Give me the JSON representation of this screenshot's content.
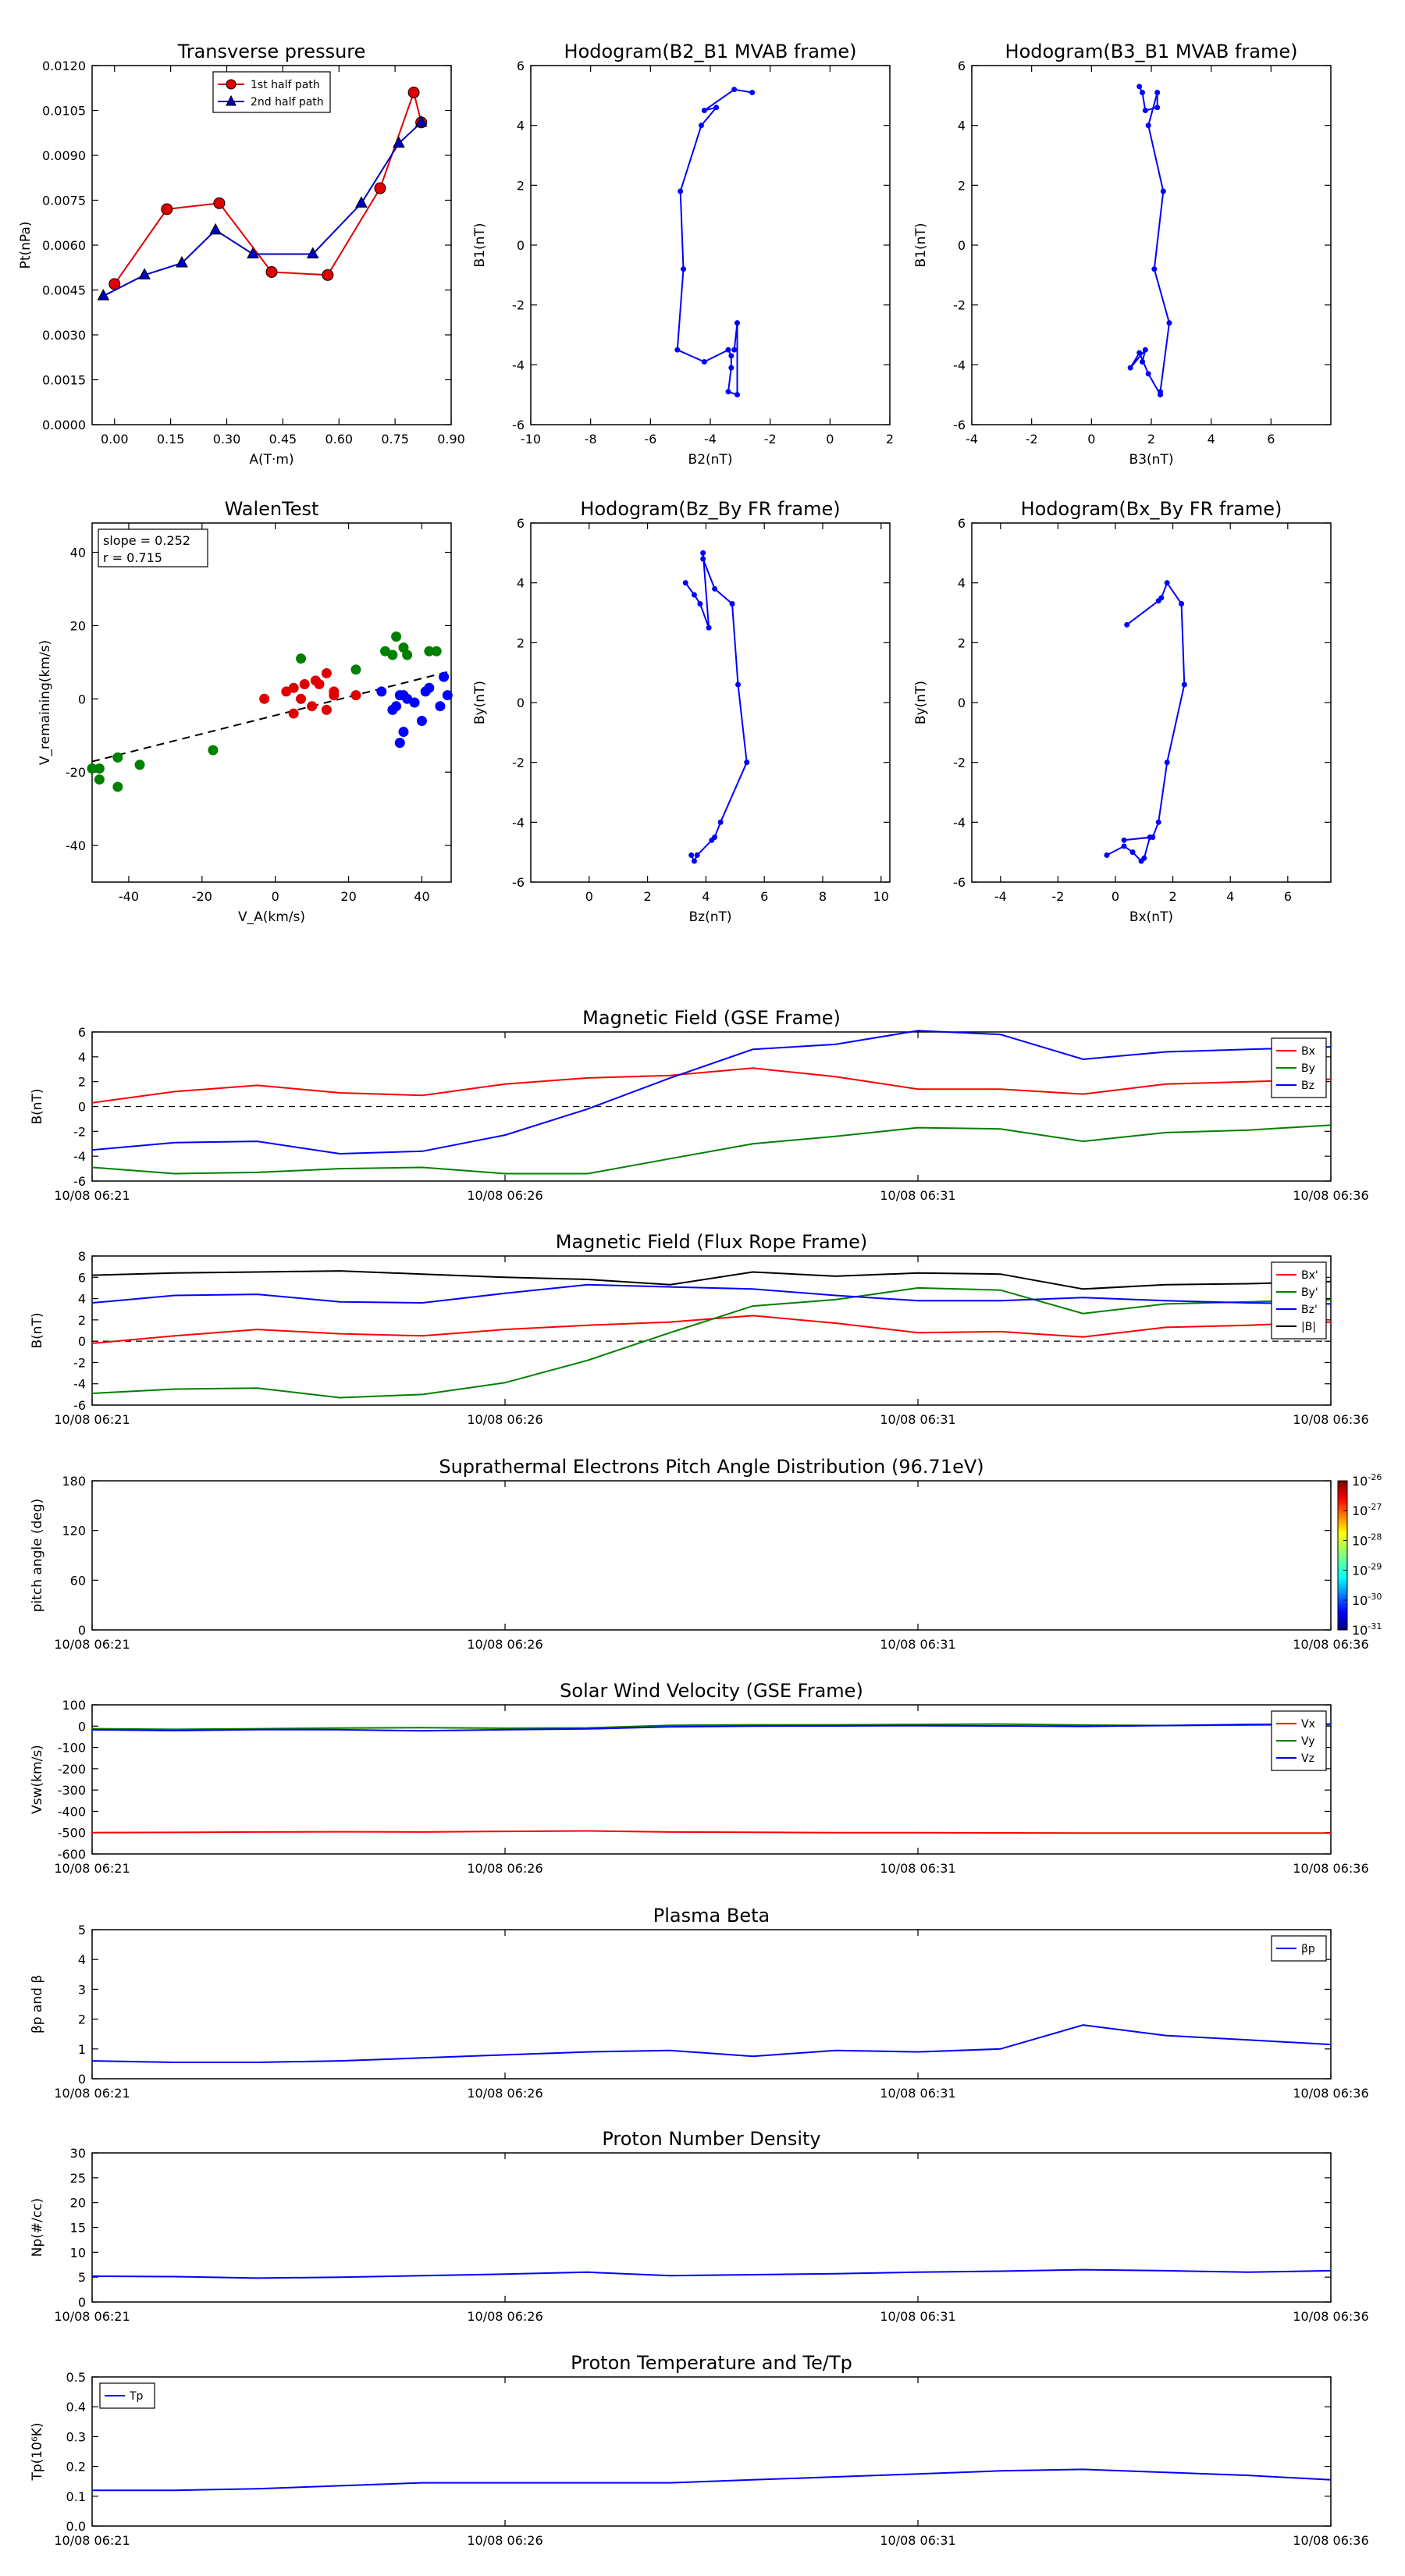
{
  "chart_data": [
    {
      "id": "tp",
      "type": "line",
      "title": "Transverse pressure",
      "xlabel": "A(T·m)",
      "ylabel": "Pt(nPa)",
      "xlim": [
        -0.06,
        0.9
      ],
      "ylim": [
        0,
        0.012
      ],
      "xticks": [
        0.0,
        0.15,
        0.3,
        0.45,
        0.6,
        0.75,
        0.9
      ],
      "xtick_labels": [
        "0.00",
        "0.15",
        "0.30",
        "0.45",
        "0.60",
        "0.75",
        "0.90"
      ],
      "yticks": [
        0,
        0.0015,
        0.003,
        0.0045,
        0.006,
        0.0075,
        0.009,
        0.0105,
        0.012
      ],
      "ytick_labels": [
        "0.0000",
        "0.0015",
        "0.0030",
        "0.0045",
        "0.0060",
        "0.0075",
        "0.0090",
        "0.0105",
        "0.0120"
      ],
      "legend_position": "top-center",
      "series": [
        {
          "name": "1st half path",
          "color": "#e00000",
          "marker": "circle",
          "x": [
            0.0,
            0.14,
            0.28,
            0.42,
            0.57,
            0.71,
            0.8,
            0.82
          ],
          "y": [
            0.0047,
            0.0072,
            0.0074,
            0.0051,
            0.005,
            0.0079,
            0.0111,
            0.0101
          ]
        },
        {
          "name": "2nd half path",
          "color": "#0000c0",
          "marker": "triangle",
          "x": [
            -0.03,
            0.08,
            0.18,
            0.27,
            0.37,
            0.53,
            0.66,
            0.76,
            0.82
          ],
          "y": [
            0.0043,
            0.005,
            0.0054,
            0.0065,
            0.0057,
            0.0057,
            0.0074,
            0.0094,
            0.0101
          ]
        }
      ]
    },
    {
      "id": "h1",
      "type": "line",
      "title": "Hodogram(B2_B1 MVAB frame)",
      "xlabel": "B2(nT)",
      "ylabel": "B1(nT)",
      "xlim": [
        -10,
        2
      ],
      "ylim": [
        -6,
        6
      ],
      "xticks": [
        -10,
        -8,
        -6,
        -4,
        -2,
        0,
        2
      ],
      "yticks": [
        -6,
        -4,
        -2,
        0,
        2,
        4,
        6
      ],
      "series": [
        {
          "color": "#0000ff",
          "marker": "dot",
          "x": [
            -2.6,
            -3.2,
            -4.2,
            -3.8,
            -4.3,
            -5,
            -4.9,
            -5.1,
            -4.2,
            -3.4,
            -3.3,
            -3.3,
            -3.4,
            -3.1,
            -3.1,
            -3.2
          ],
          "y": [
            5.1,
            5.2,
            4.5,
            4.6,
            4,
            1.8,
            -0.8,
            -3.5,
            -3.9,
            -3.5,
            -3.7,
            -4.1,
            -4.9,
            -5,
            -2.6,
            -3.5
          ]
        }
      ]
    },
    {
      "id": "h2",
      "type": "line",
      "title": "Hodogram(B3_B1 MVAB frame)",
      "xlabel": "B3(nT)",
      "ylabel": "B1(nT)",
      "xlim": [
        -4,
        8
      ],
      "ylim": [
        -6,
        6
      ],
      "xticks": [
        -4,
        -2,
        0,
        2,
        4,
        6
      ],
      "yticks": [
        -6,
        -4,
        -2,
        0,
        2,
        4,
        6
      ],
      "series": [
        {
          "color": "#0000ff",
          "marker": "dot",
          "x": [
            1.6,
            1.7,
            1.8,
            2.2,
            2.2,
            1.9,
            2.4,
            2.1,
            2.6,
            2.3,
            2.3,
            1.9,
            1.6,
            1.3,
            1.8,
            1.7
          ],
          "y": [
            5.3,
            5.1,
            4.5,
            4.6,
            5.1,
            4,
            1.8,
            -0.8,
            -2.6,
            -4.9,
            -5,
            -4.3,
            -3.6,
            -4.1,
            -3.5,
            -3.9
          ]
        }
      ]
    },
    {
      "id": "walen",
      "type": "scatter",
      "title": "WalenTest",
      "xlabel": "V_A(km/s)",
      "ylabel": "V_remaining(km/s)",
      "xlim": [
        -50,
        48
      ],
      "ylim": [
        -50,
        48
      ],
      "xticks": [
        -40,
        -20,
        0,
        20,
        40
      ],
      "yticks": [
        -40,
        -20,
        0,
        20,
        40
      ],
      "annotation": [
        "slope = 0.252",
        "r = 0.715"
      ],
      "fit_line": {
        "slope": 0.252,
        "intercept": -4.5
      },
      "series": [
        {
          "color": "#e00000",
          "x": [
            -3,
            3,
            5,
            5,
            7,
            8,
            10,
            11,
            12,
            14,
            14,
            16,
            16,
            22
          ],
          "y": [
            0,
            2,
            -4,
            3,
            0,
            4,
            -2,
            5,
            4,
            -3,
            7,
            1,
            2,
            1
          ]
        },
        {
          "color": "#008000",
          "x": [
            -50,
            -48,
            -48,
            -43,
            -43,
            -37,
            -17,
            7,
            22,
            30,
            32,
            33,
            35,
            36,
            42,
            44
          ],
          "y": [
            -19,
            -22,
            -19,
            -24,
            -16,
            -18,
            -14,
            11,
            8,
            13,
            12,
            17,
            14,
            12,
            13,
            13
          ]
        },
        {
          "color": "#0000ff",
          "x": [
            29,
            32,
            33,
            34,
            34,
            35,
            35,
            36,
            38,
            40,
            41,
            42,
            45,
            46,
            47
          ],
          "y": [
            2,
            -3,
            -2,
            1,
            -12,
            1,
            -9,
            0,
            -1,
            -6,
            2,
            3,
            -2,
            6,
            1
          ]
        }
      ]
    },
    {
      "id": "h3",
      "type": "line",
      "title": "Hodogram(Bz_By FR frame)",
      "xlabel": "Bz(nT)",
      "ylabel": "By(nT)",
      "xlim": [
        -2,
        10.3
      ],
      "ylim": [
        -6,
        6
      ],
      "xticks": [
        0,
        2,
        4,
        6,
        8,
        10
      ],
      "yticks": [
        -6,
        -4,
        -2,
        0,
        2,
        4,
        6
      ],
      "series": [
        {
          "color": "#0000ff",
          "marker": "dot",
          "x": [
            3.3,
            3.6,
            3.8,
            4.1,
            3.9,
            3.9,
            4.3,
            4.9,
            5.1,
            5.4,
            4.5,
            4.3,
            4.2,
            3.7,
            3.6,
            3.5
          ],
          "y": [
            4,
            3.6,
            3.3,
            2.5,
            5,
            4.8,
            3.8,
            3.3,
            0.6,
            -2,
            -4,
            -4.5,
            -4.6,
            -5.1,
            -5.3,
            -5.1
          ]
        }
      ]
    },
    {
      "id": "h4",
      "type": "line",
      "title": "Hodogram(Bx_By FR frame)",
      "xlabel": "Bx(nT)",
      "ylabel": "By(nT)",
      "xlim": [
        -5,
        7.5
      ],
      "ylim": [
        -6,
        6
      ],
      "xticks": [
        -4,
        -2,
        0,
        2,
        4,
        6
      ],
      "yticks": [
        -6,
        -4,
        -2,
        0,
        2,
        4,
        6
      ],
      "series": [
        {
          "color": "#0000ff",
          "marker": "dot",
          "x": [
            0.4,
            1.5,
            1.6,
            1.8,
            2.3,
            2.4,
            1.8,
            1.5,
            1.3,
            0.3,
            1.2,
            1,
            0.9,
            0.6,
            0.3,
            -0.3
          ],
          "y": [
            2.6,
            3.4,
            3.5,
            4,
            3.3,
            0.6,
            -2,
            -4,
            -4.5,
            -4.6,
            -4.5,
            -5.2,
            -5.3,
            -5,
            -4.8,
            -5.1
          ]
        }
      ]
    },
    {
      "id": "bgse",
      "type": "line",
      "title": "Magnetic Field (GSE Frame)",
      "ylabel": "B(nT)",
      "x_start_min": 0,
      "x_end_min": 15,
      "xticks": [
        0,
        5,
        10,
        15
      ],
      "xtick_labels": [
        "10/08 06:21",
        "10/08 06:26",
        "10/08 06:31",
        "10/08 06:36"
      ],
      "ylim": [
        -6,
        6
      ],
      "yticks": [
        -6,
        -4,
        -2,
        0,
        2,
        4,
        6
      ],
      "zero_line": true,
      "legend_position": "top-right",
      "x": [
        0,
        1,
        2,
        3,
        4,
        5,
        6,
        7,
        8,
        9,
        10,
        11,
        12,
        13,
        14,
        15
      ],
      "series": [
        {
          "name": "Bx",
          "color": "#ff0000",
          "values": [
            0.3,
            1.2,
            1.7,
            1.1,
            0.9,
            1.8,
            2.3,
            2.5,
            3.1,
            2.4,
            1.4,
            1.4,
            1.0,
            1.8,
            2.0,
            2.2
          ]
        },
        {
          "name": "By",
          "color": "#008000",
          "values": [
            -4.9,
            -5.4,
            -5.3,
            -5.0,
            -4.9,
            -5.4,
            -5.4,
            -4.2,
            -3.0,
            -2.4,
            -1.7,
            -1.8,
            -2.8,
            -2.1,
            -1.9,
            -1.5
          ]
        },
        {
          "name": "Bz",
          "color": "#0000ff",
          "values": [
            -3.5,
            -2.9,
            -2.8,
            -3.8,
            -3.6,
            -2.3,
            -0.2,
            2.3,
            4.6,
            5.0,
            6.1,
            5.8,
            3.8,
            4.4,
            4.6,
            4.8
          ]
        }
      ]
    },
    {
      "id": "bfr",
      "type": "line",
      "title": "Magnetic Field (Flux Rope Frame)",
      "ylabel": "B(nT)",
      "x_start_min": 0,
      "x_end_min": 15,
      "xticks": [
        0,
        5,
        10,
        15
      ],
      "xtick_labels": [
        "10/08 06:21",
        "10/08 06:26",
        "10/08 06:31",
        "10/08 06:36"
      ],
      "ylim": [
        -6,
        8
      ],
      "yticks": [
        -6,
        -4,
        -2,
        0,
        2,
        4,
        6,
        8
      ],
      "zero_line": true,
      "legend_position": "top-right",
      "x": [
        0,
        1,
        2,
        3,
        4,
        5,
        6,
        7,
        8,
        9,
        10,
        11,
        12,
        13,
        14,
        15
      ],
      "series": [
        {
          "name": "Bx'",
          "color": "#ff0000",
          "values": [
            -0.2,
            0.5,
            1.1,
            0.7,
            0.5,
            1.1,
            1.5,
            1.8,
            2.4,
            1.7,
            0.8,
            0.9,
            0.4,
            1.3,
            1.5,
            1.8
          ]
        },
        {
          "name": "By'",
          "color": "#008000",
          "values": [
            -4.9,
            -4.5,
            -4.4,
            -5.3,
            -5.0,
            -3.9,
            -1.8,
            0.8,
            3.3,
            3.9,
            5.0,
            4.8,
            2.6,
            3.5,
            3.7,
            3.9
          ]
        },
        {
          "name": "Bz'",
          "color": "#0000ff",
          "values": [
            3.6,
            4.3,
            4.4,
            3.7,
            3.6,
            4.5,
            5.3,
            5.1,
            4.9,
            4.3,
            3.8,
            3.8,
            4.1,
            3.8,
            3.6,
            3.5
          ]
        },
        {
          "name": "|B|",
          "color": "#000000",
          "values": [
            6.2,
            6.4,
            6.5,
            6.6,
            6.3,
            6.0,
            5.8,
            5.3,
            6.5,
            6.1,
            6.4,
            6.3,
            4.9,
            5.3,
            5.4,
            5.6
          ]
        }
      ]
    },
    {
      "id": "pad",
      "type": "heatmap",
      "title": "Suprathermal Electrons Pitch Angle Distribution (96.71eV)",
      "ylabel": "pitch angle (deg)",
      "x_start_min": 0,
      "x_end_min": 15,
      "xticks": [
        0,
        5,
        10,
        15
      ],
      "xtick_labels": [
        "10/08 06:21",
        "10/08 06:26",
        "10/08 06:31",
        "10/08 06:36"
      ],
      "ylim": [
        0,
        180
      ],
      "yticks": [
        0,
        60,
        120,
        180
      ],
      "colorbar": {
        "exponents": [
          "-26",
          "-27",
          "-28",
          "-29",
          "-30",
          "-31"
        ],
        "base": "10"
      }
    },
    {
      "id": "vsw",
      "type": "line",
      "title": "Solar Wind Velocity (GSE Frame)",
      "ylabel": "Vsw(km/s)",
      "x_start_min": 0,
      "x_end_min": 15,
      "xticks": [
        0,
        5,
        10,
        15
      ],
      "xtick_labels": [
        "10/08 06:21",
        "10/08 06:26",
        "10/08 06:31",
        "10/08 06:36"
      ],
      "ylim": [
        -600,
        100
      ],
      "yticks": [
        -600,
        -500,
        -400,
        -300,
        -200,
        -100,
        0,
        100
      ],
      "legend_position": "top-right",
      "x": [
        0,
        1,
        2,
        3,
        4,
        5,
        6,
        7,
        8,
        9,
        10,
        11,
        12,
        13,
        14,
        15
      ],
      "series": [
        {
          "name": "Vx",
          "color": "#ff0000",
          "values": [
            -500,
            -499,
            -497,
            -496,
            -497,
            -494,
            -492,
            -497,
            -498,
            -500,
            -500,
            -501,
            -502,
            -502,
            -502,
            -502
          ]
        },
        {
          "name": "Vy",
          "color": "#008000",
          "values": [
            -12,
            -15,
            -12,
            -9,
            -7,
            -10,
            -8,
            4,
            6,
            6,
            8,
            10,
            5,
            3,
            5,
            7
          ]
        },
        {
          "name": "Vz",
          "color": "#0000ff",
          "values": [
            -17,
            -21,
            -16,
            -17,
            -22,
            -17,
            -13,
            -3,
            0,
            1,
            2,
            1,
            -1,
            3,
            8,
            10
          ]
        }
      ]
    },
    {
      "id": "beta",
      "type": "line",
      "title": "Plasma Beta",
      "ylabel": "βp and β",
      "x_start_min": 0,
      "x_end_min": 15,
      "xticks": [
        0,
        5,
        10,
        15
      ],
      "xtick_labels": [
        "10/08 06:21",
        "10/08 06:26",
        "10/08 06:31",
        "10/08 06:36"
      ],
      "ylim": [
        0,
        5
      ],
      "yticks": [
        0,
        1,
        2,
        3,
        4,
        5
      ],
      "legend_position": "top-right",
      "x": [
        0,
        1,
        2,
        3,
        4,
        5,
        6,
        7,
        8,
        9,
        10,
        11,
        12,
        13,
        14,
        15
      ],
      "series": [
        {
          "name": "βp",
          "color": "#0000ff",
          "values": [
            0.6,
            0.55,
            0.55,
            0.6,
            0.7,
            0.8,
            0.9,
            0.95,
            0.75,
            0.95,
            0.9,
            1.0,
            1.8,
            1.45,
            1.3,
            1.15
          ]
        }
      ]
    },
    {
      "id": "np",
      "type": "line",
      "title": "Proton Number Density",
      "ylabel": "Np(#/cc)",
      "x_start_min": 0,
      "x_end_min": 15,
      "xticks": [
        0,
        5,
        10,
        15
      ],
      "xtick_labels": [
        "10/08 06:21",
        "10/08 06:26",
        "10/08 06:31",
        "10/08 06:36"
      ],
      "ylim": [
        0,
        30
      ],
      "yticks": [
        0,
        5,
        10,
        15,
        20,
        25,
        30
      ],
      "x": [
        0,
        1,
        2,
        3,
        4,
        5,
        6,
        7,
        8,
        9,
        10,
        11,
        12,
        13,
        14,
        15
      ],
      "series": [
        {
          "color": "#0000ff",
          "values": [
            5.2,
            5.1,
            4.8,
            5.0,
            5.3,
            5.6,
            6.0,
            5.3,
            5.5,
            5.7,
            6.0,
            6.2,
            6.5,
            6.3,
            6.0,
            6.3
          ]
        }
      ]
    },
    {
      "id": "tpx",
      "type": "line",
      "title": "Proton Temperature and Te/Tp",
      "ylabel": "Tp(10⁶K)",
      "x_start_min": 0,
      "x_end_min": 15,
      "xticks": [
        0,
        5,
        10,
        15
      ],
      "xtick_labels": [
        "10/08 06:21",
        "10/08 06:26",
        "10/08 06:31",
        "10/08 06:36"
      ],
      "ylim": [
        0,
        0.5
      ],
      "yticks": [
        0,
        0.1,
        0.2,
        0.3,
        0.4,
        0.5
      ],
      "ytick_labels": [
        "0.0",
        "0.1",
        "0.2",
        "0.3",
        "0.4",
        "0.5"
      ],
      "legend_position": "top-left",
      "x": [
        0,
        1,
        2,
        3,
        4,
        5,
        6,
        7,
        8,
        9,
        10,
        11,
        12,
        13,
        14,
        15
      ],
      "series": [
        {
          "name": "Tp",
          "color": "#0000ff",
          "values": [
            0.12,
            0.12,
            0.125,
            0.135,
            0.145,
            0.145,
            0.145,
            0.145,
            0.155,
            0.165,
            0.175,
            0.185,
            0.19,
            0.18,
            0.17,
            0.155
          ]
        }
      ]
    }
  ]
}
